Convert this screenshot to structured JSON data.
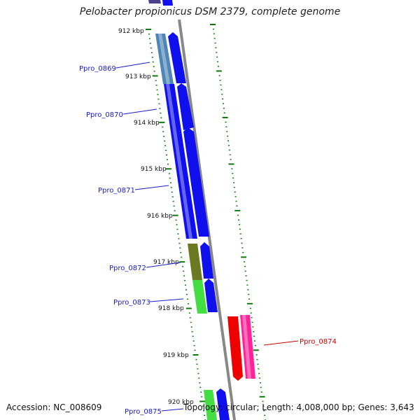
{
  "title": "Pelobacter propionicus DSM 2379, complete genome",
  "footer": {
    "accession": "Accession: NC_008609",
    "topology": "Topology: circular; Length: 4,008,000 bp; Genes: 3,643"
  },
  "colors": {
    "backbone": "#888888",
    "tick": "#0a7a0a",
    "gene_label": "#1a1acc",
    "highlight_label": "#cc0000",
    "blue": "#1010ee",
    "light_blue": "#4f86b8",
    "olive": "#6b7a22",
    "green": "#44dd44",
    "red": "#ee0000",
    "pink": "#ff2299"
  },
  "kbp_labels": [
    "912 kbp",
    "913 kbp",
    "914 kbp",
    "915 kbp",
    "916 kbp",
    "917 kbp",
    "918 kbp",
    "919 kbp",
    "920 kbp"
  ],
  "gene_labels": [
    "Ppro_0869",
    "Ppro_0870",
    "Ppro_0871",
    "Ppro_0872",
    "Ppro_0873",
    "Ppro_0874",
    "Ppro_0875"
  ]
}
